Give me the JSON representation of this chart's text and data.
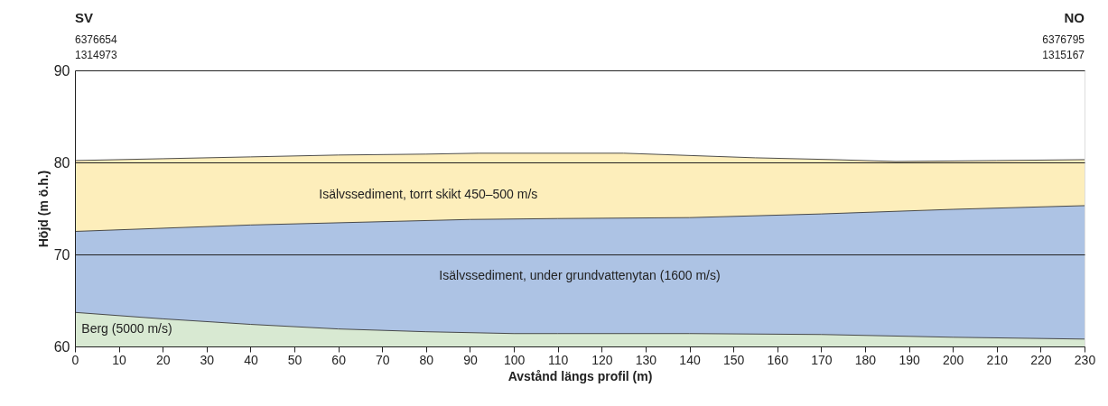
{
  "chart_data": {
    "type": "area",
    "xlabel": "Avstånd längs profil (m)",
    "ylabel": "Höjd (m ö.h.)",
    "xlim": [
      0,
      230
    ],
    "xticks": [
      0,
      10,
      20,
      30,
      40,
      50,
      60,
      70,
      80,
      90,
      100,
      110,
      120,
      130,
      140,
      150,
      160,
      170,
      180,
      190,
      200,
      210,
      220,
      230
    ],
    "ylim": [
      60,
      90
    ],
    "yticks": [
      60,
      70,
      80,
      90
    ],
    "grid": "y",
    "annotations": [
      "SV",
      "6376654",
      "1314973",
      "NO",
      "6376795",
      "1315167"
    ],
    "series": [
      {
        "name": "Isälvssediment, torrt skikt 450–500 m/s",
        "color": "#fdeebb",
        "x": [
          0,
          20,
          40,
          60,
          80,
          92,
          125,
          137,
          155,
          173,
          187,
          210,
          230
        ],
        "values": [
          80.2,
          80.4,
          80.6,
          80.8,
          80.9,
          81.0,
          81.0,
          80.8,
          80.5,
          80.3,
          80.1,
          80.2,
          80.3
        ]
      },
      {
        "name": "Isälvssediment, under grundvattenytan (1600 m/s)",
        "color": "#adc3e4",
        "x": [
          0,
          40,
          90,
          110,
          140,
          170,
          200,
          230
        ],
        "values": [
          72.5,
          73.2,
          73.8,
          73.9,
          74.0,
          74.4,
          74.9,
          75.3
        ]
      },
      {
        "name": "Berg (5000 m/s)",
        "color": "#d8e9d2",
        "x": [
          0,
          20,
          40,
          60,
          80,
          100,
          110,
          140,
          170,
          200,
          230
        ],
        "values": [
          63.7,
          63.0,
          62.4,
          61.9,
          61.6,
          61.4,
          61.4,
          61.4,
          61.3,
          61.0,
          60.8
        ]
      }
    ]
  }
}
